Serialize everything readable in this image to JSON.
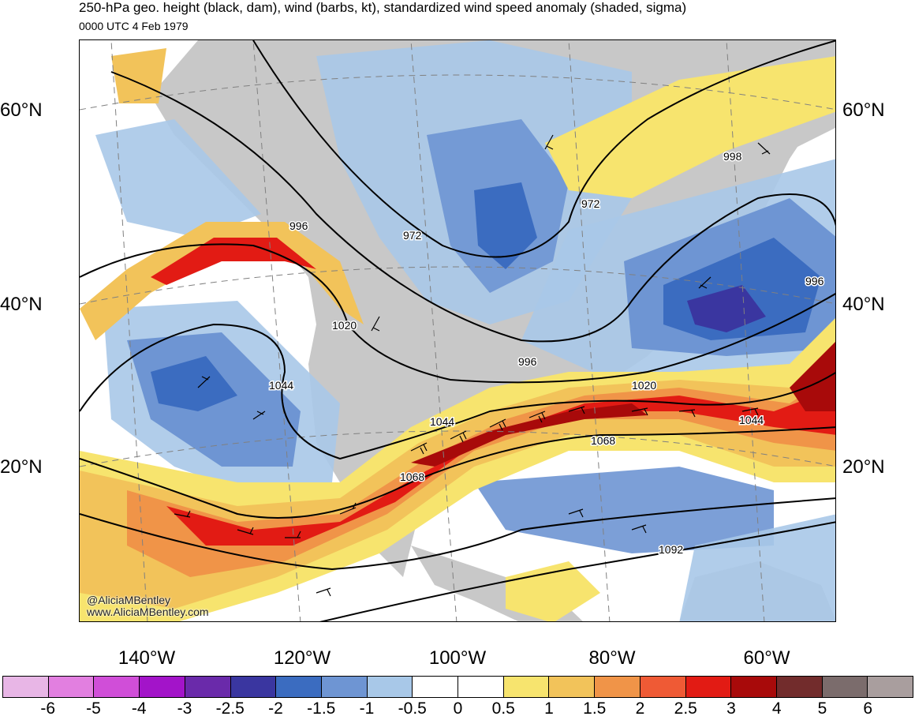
{
  "header": {
    "title": "250-hPa geo. height (black, dam), wind (barbs, kt), standardized wind speed anomaly (shaded, sigma)",
    "subtitle": "0000 UTC 4 Feb 1979"
  },
  "map": {
    "lat_labels": [
      "60°N",
      "40°N",
      "20°N"
    ],
    "lon_labels": [
      "140°W",
      "120°W",
      "100°W",
      "80°W",
      "60°W"
    ],
    "contour_labels": [
      "996",
      "972",
      "1020",
      "1044",
      "996",
      "1044",
      "1068",
      "1068",
      "1020",
      "1044",
      "1092",
      "972",
      "996",
      "998"
    ],
    "credit_line1": "@AliciaMBentley",
    "credit_line2": "www.AliciaMBentley.com",
    "land_color": "#cccccc"
  },
  "colorbar": {
    "ticks": [
      "-6",
      "-5",
      "-4",
      "-3",
      "-2.5",
      "-2",
      "-1.5",
      "-1",
      "-0.5",
      "0",
      "0.5",
      "1",
      "1.5",
      "2",
      "2.5",
      "3",
      "4",
      "5",
      "6"
    ],
    "colors": [
      "#e8b6e6",
      "#e27fe0",
      "#d04ed8",
      "#a314c9",
      "#6a2aaa",
      "#3a36a0",
      "#3b6cc0",
      "#6e95d3",
      "#a8c8e8",
      "#ffffff",
      "#ffffff",
      "#f7e46e",
      "#f2c35a",
      "#f09448",
      "#ef5a35",
      "#e21b14",
      "#a80a0a",
      "#722c2c",
      "#7b6c6c",
      "#a99e9e"
    ]
  }
}
